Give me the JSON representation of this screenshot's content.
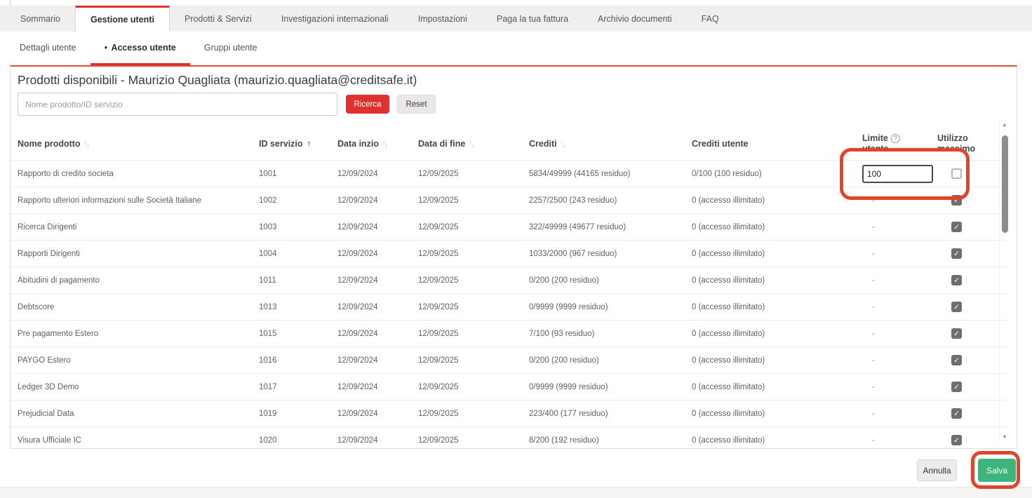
{
  "main_tabs": {
    "items": [
      {
        "label": "Sommario",
        "active": false
      },
      {
        "label": "Gestione utenti",
        "active": true
      },
      {
        "label": "Prodotti & Servizi",
        "active": false
      },
      {
        "label": "Investigazioni internazionali",
        "active": false
      },
      {
        "label": "Impostazioni",
        "active": false
      },
      {
        "label": "Paga la tua fattura",
        "active": false
      },
      {
        "label": "Archivio documenti",
        "active": false
      },
      {
        "label": "FAQ",
        "active": false
      }
    ]
  },
  "sub_tabs": {
    "items": [
      {
        "label": "Dettagli utente",
        "active": false
      },
      {
        "label": "Accesso utente",
        "active": true,
        "bullet": "●"
      },
      {
        "label": "Gruppi utente",
        "active": false
      }
    ]
  },
  "panel": {
    "title": "Prodotti disponibili - Maurizio Quagliata (maurizio.quagliata@creditsafe.it)",
    "search": {
      "placeholder": "Nome prodotto/ID servizio",
      "search_label": "Ricerca",
      "reset_label": "Reset"
    },
    "table": {
      "headers": [
        {
          "key": "name",
          "label": "Nome prodotto",
          "sort": "both"
        },
        {
          "key": "service-id",
          "label": "ID servizio",
          "sort": "asc"
        },
        {
          "key": "start-date",
          "label": "Data inzio",
          "sort": "both"
        },
        {
          "key": "end-date",
          "label": "Data di fine",
          "sort": "both"
        },
        {
          "key": "credits",
          "label": "Crediti",
          "sort": "both"
        },
        {
          "key": "user-credits",
          "label": "Crediti utente",
          "sort": "none"
        },
        {
          "key": "user-limit",
          "label": "Limite utente",
          "sort": "none",
          "lines": [
            "Limite",
            "utente"
          ],
          "help": true
        },
        {
          "key": "max-usage",
          "label": "Utilizzo massimo",
          "sort": "none",
          "lines": [
            "Utilizzo",
            "massimo"
          ]
        }
      ],
      "rows": [
        {
          "name": "Rapporto di credito societa",
          "service_id": "1001",
          "start_date": "12/09/2024",
          "end_date": "12/09/2025",
          "credits": "5834/49999 (44165 residuo)",
          "user_credits": "0/100 (100 residuo)",
          "limit": {
            "type": "input",
            "value": "100"
          },
          "max_usage_checked": false
        },
        {
          "name": "Rapporto ulteriori informazioni sulle Società Italiane",
          "service_id": "1002",
          "start_date": "12/09/2024",
          "end_date": "12/09/2025",
          "credits": "2257/2500 (243 residuo)",
          "user_credits": "0 (accesso illimitato)",
          "limit": {
            "type": "text",
            "value": "-"
          },
          "max_usage_checked": true
        },
        {
          "name": "Ricerca Dirigenti",
          "service_id": "1003",
          "start_date": "12/09/2024",
          "end_date": "12/09/2025",
          "credits": "322/49999 (49677 residuo)",
          "user_credits": "0 (accesso illimitato)",
          "limit": {
            "type": "text",
            "value": "-"
          },
          "max_usage_checked": true
        },
        {
          "name": "Rapporti Dirigenti",
          "service_id": "1004",
          "start_date": "12/09/2024",
          "end_date": "12/09/2025",
          "credits": "1033/2000 (967 residuo)",
          "user_credits": "0 (accesso illimitato)",
          "limit": {
            "type": "text",
            "value": "-"
          },
          "max_usage_checked": true
        },
        {
          "name": "Abitudini di pagamento",
          "service_id": "1011",
          "start_date": "12/09/2024",
          "end_date": "12/09/2025",
          "credits": "0/200 (200 residuo)",
          "user_credits": "0 (accesso illimitato)",
          "limit": {
            "type": "text",
            "value": "-"
          },
          "max_usage_checked": true
        },
        {
          "name": "Debtscore",
          "service_id": "1013",
          "start_date": "12/09/2024",
          "end_date": "12/09/2025",
          "credits": "0/9999 (9999 residuo)",
          "user_credits": "0 (accesso illimitato)",
          "limit": {
            "type": "text",
            "value": "-"
          },
          "max_usage_checked": true
        },
        {
          "name": "Pre pagamento Estero",
          "service_id": "1015",
          "start_date": "12/09/2024",
          "end_date": "12/09/2025",
          "credits": "7/100 (93 residuo)",
          "user_credits": "0 (accesso illimitato)",
          "limit": {
            "type": "text",
            "value": "-"
          },
          "max_usage_checked": true
        },
        {
          "name": "PAYGO Estero",
          "service_id": "1016",
          "start_date": "12/09/2024",
          "end_date": "12/09/2025",
          "credits": "0/200 (200 residuo)",
          "user_credits": "0 (accesso illimitato)",
          "limit": {
            "type": "text",
            "value": "-"
          },
          "max_usage_checked": true
        },
        {
          "name": "Ledger 3D Demo",
          "service_id": "1017",
          "start_date": "12/09/2024",
          "end_date": "12/09/2025",
          "credits": "0/9999 (9999 residuo)",
          "user_credits": "0 (accesso illimitato)",
          "limit": {
            "type": "text",
            "value": "-"
          },
          "max_usage_checked": true
        },
        {
          "name": "Prejudicial Data",
          "service_id": "1019",
          "start_date": "12/09/2024",
          "end_date": "12/09/2025",
          "credits": "223/400 (177 residuo)",
          "user_credits": "0 (accesso illimitato)",
          "limit": {
            "type": "text",
            "value": "-"
          },
          "max_usage_checked": true
        },
        {
          "name": "Visura Ufficiale IC",
          "service_id": "1020",
          "start_date": "12/09/2024",
          "end_date": "12/09/2025",
          "credits": "8/200 (192 residuo)",
          "user_credits": "0 (accesso illimitato)",
          "limit": {
            "type": "text",
            "value": "-"
          },
          "max_usage_checked": true
        }
      ]
    }
  },
  "footer_buttons": {
    "cancel": "Annulla",
    "save": "Salva"
  },
  "icons": {
    "sort_up": "↑",
    "sort_down": "↓",
    "help": "?",
    "check": "✓",
    "scroll_up": "▲",
    "scroll_down": "▼"
  },
  "colors": {
    "accent_red": "#e03131",
    "panel_top_red": "#dd4a3e",
    "annotation_red": "#e2442b",
    "save_green": "#3db47b",
    "checkbox_gray": "#6e6e6e"
  }
}
